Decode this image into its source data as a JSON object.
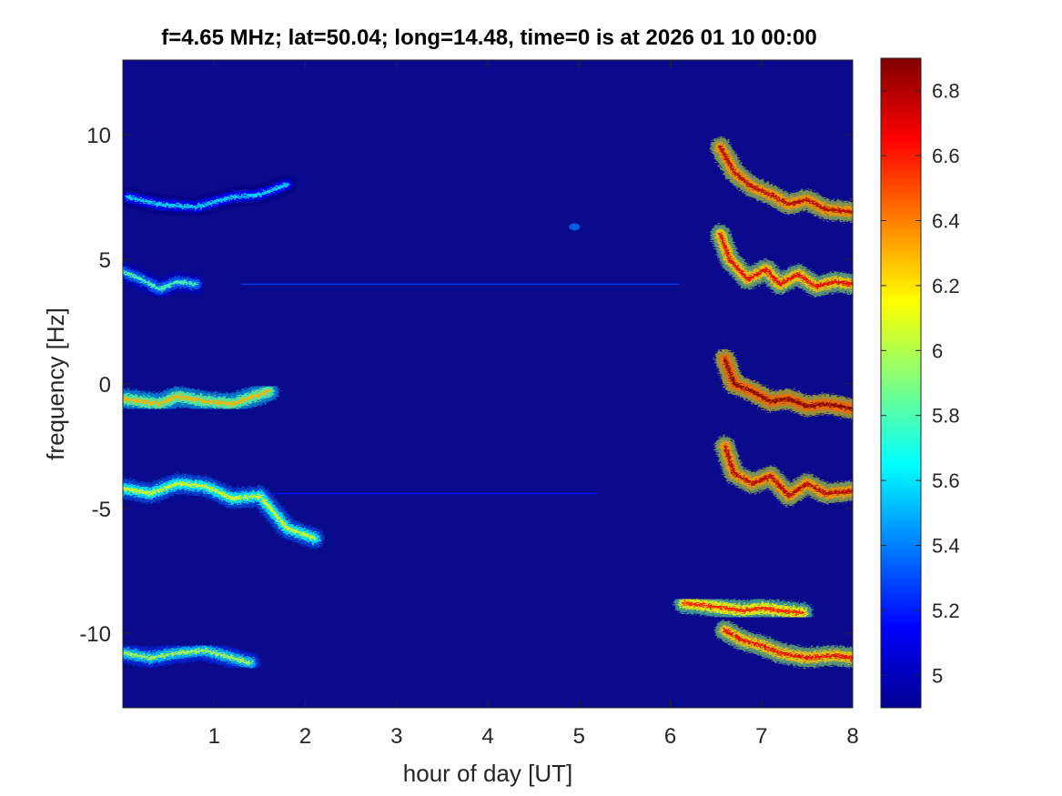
{
  "chart_data": {
    "type": "heatmap",
    "title": "f=4.65 MHz;  lat=50.04; long=14.48, time=0 is at 2026 01 10 00:00",
    "xlabel": "hour of day [UT]",
    "ylabel": "frequency [Hz]",
    "xlim": [
      0,
      8
    ],
    "ylim": [
      -13,
      13
    ],
    "xticks": [
      1,
      2,
      3,
      4,
      5,
      6,
      7,
      8
    ],
    "yticks": [
      10,
      5,
      0,
      -5,
      -10
    ],
    "colorbar": {
      "range": [
        4.9,
        6.9
      ],
      "ticks": [
        6.8,
        6.6,
        6.4,
        6.2,
        6,
        5.8,
        5.6,
        5.4,
        5.2,
        5
      ],
      "colormap": "jet"
    },
    "background_color": "#0a0a8c",
    "traces": [
      {
        "name": "trace-upper-1",
        "points": [
          [
            0.05,
            7.5
          ],
          [
            0.4,
            7.2
          ],
          [
            0.8,
            7.1
          ],
          [
            1.2,
            7.5
          ],
          [
            1.5,
            7.6
          ],
          [
            1.8,
            8.0
          ]
        ],
        "intensity": 5.4
      },
      {
        "name": "trace-upper-2",
        "points": [
          [
            0,
            4.5
          ],
          [
            0.2,
            4.2
          ],
          [
            0.4,
            3.8
          ],
          [
            0.6,
            4.1
          ],
          [
            0.8,
            4.0
          ]
        ],
        "intensity": 5.6
      },
      {
        "name": "trace-center",
        "points": [
          [
            0,
            -0.6
          ],
          [
            0.2,
            -0.7
          ],
          [
            0.4,
            -0.8
          ],
          [
            0.6,
            -0.5
          ],
          [
            0.9,
            -0.7
          ],
          [
            1.2,
            -0.8
          ],
          [
            1.6,
            -0.3
          ]
        ],
        "intensity": 6.1
      },
      {
        "name": "trace-lower-1",
        "points": [
          [
            0,
            -4.2
          ],
          [
            0.3,
            -4.4
          ],
          [
            0.6,
            -4.0
          ],
          [
            0.9,
            -4.1
          ],
          [
            1.2,
            -4.6
          ],
          [
            1.5,
            -4.5
          ],
          [
            1.8,
            -5.8
          ],
          [
            2.1,
            -6.2
          ]
        ],
        "intensity": 5.9
      },
      {
        "name": "trace-lower-2",
        "points": [
          [
            0,
            -10.8
          ],
          [
            0.3,
            -11.0
          ],
          [
            0.6,
            -10.8
          ],
          [
            0.9,
            -10.7
          ],
          [
            1.2,
            -11.0
          ],
          [
            1.4,
            -11.2
          ]
        ],
        "intensity": 5.8
      },
      {
        "name": "trace-late-1",
        "points": [
          [
            6.55,
            9.5
          ],
          [
            6.7,
            8.5
          ],
          [
            6.9,
            7.9
          ],
          [
            7.1,
            7.6
          ],
          [
            7.3,
            7.2
          ],
          [
            7.5,
            7.4
          ],
          [
            7.7,
            7.0
          ],
          [
            8.0,
            6.9
          ]
        ],
        "intensity": 6.6
      },
      {
        "name": "trace-late-2",
        "points": [
          [
            6.55,
            6.0
          ],
          [
            6.65,
            5.0
          ],
          [
            6.85,
            4.2
          ],
          [
            7.05,
            4.6
          ],
          [
            7.2,
            4.0
          ],
          [
            7.4,
            4.4
          ],
          [
            7.6,
            3.9
          ],
          [
            7.8,
            4.1
          ],
          [
            8.0,
            4.0
          ]
        ],
        "intensity": 6.5
      },
      {
        "name": "trace-late-3",
        "points": [
          [
            6.6,
            1.0
          ],
          [
            6.7,
            0.0
          ],
          [
            6.9,
            -0.3
          ],
          [
            7.1,
            -0.7
          ],
          [
            7.3,
            -0.6
          ],
          [
            7.5,
            -0.9
          ],
          [
            7.7,
            -0.8
          ],
          [
            8.0,
            -1.0
          ]
        ],
        "intensity": 6.7
      },
      {
        "name": "trace-late-4",
        "points": [
          [
            6.6,
            -2.5
          ],
          [
            6.7,
            -3.6
          ],
          [
            6.9,
            -4.0
          ],
          [
            7.1,
            -3.7
          ],
          [
            7.3,
            -4.5
          ],
          [
            7.5,
            -4.0
          ],
          [
            7.7,
            -4.4
          ],
          [
            8.0,
            -4.3
          ]
        ],
        "intensity": 6.6
      },
      {
        "name": "trace-late-5",
        "points": [
          [
            6.15,
            -8.8
          ],
          [
            6.4,
            -8.9
          ],
          [
            6.6,
            -9.0
          ],
          [
            6.8,
            -9.1
          ],
          [
            7.0,
            -9.0
          ],
          [
            7.2,
            -9.1
          ],
          [
            7.45,
            -9.2
          ]
        ],
        "intensity": 6.4
      },
      {
        "name": "trace-late-6",
        "points": [
          [
            6.6,
            -9.9
          ],
          [
            6.8,
            -10.3
          ],
          [
            7.0,
            -10.5
          ],
          [
            7.2,
            -10.8
          ],
          [
            7.5,
            -11.0
          ],
          [
            7.8,
            -10.9
          ],
          [
            8.0,
            -11.0
          ]
        ],
        "intensity": 6.5
      }
    ],
    "horizontal_lines": [
      {
        "y": 4.0,
        "from": 1.3,
        "to": 6.1,
        "intensity": 5.3
      },
      {
        "y": -4.4,
        "from": 1.3,
        "to": 5.2,
        "intensity": 5.2
      }
    ],
    "faint_patch": {
      "x": 4.95,
      "y": 6.3,
      "intensity": 5.4
    }
  }
}
